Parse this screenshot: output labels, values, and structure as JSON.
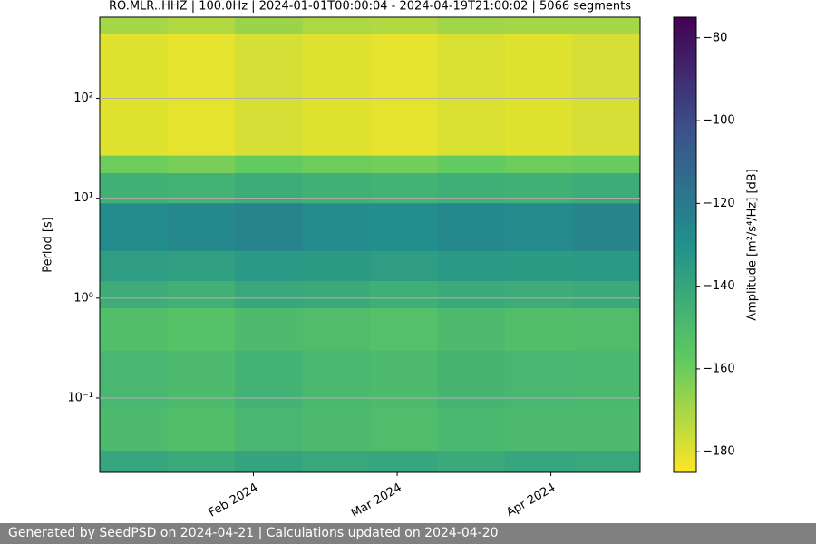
{
  "chart_data": {
    "type": "heatmap",
    "title": "RO.MLR..HHZ | 100.0Hz | 2024-01-01T00:00:04 - 2024-04-19T21:00:02 | 5066 segments",
    "ylabel": "Period [s]",
    "xlim": [
      "2024-01-01",
      "2024-04-19"
    ],
    "xticks": [
      {
        "value": "2024-02-01",
        "label": "Feb 2024"
      },
      {
        "value": "2024-03-01",
        "label": "Mar 2024"
      },
      {
        "value": "2024-04-01",
        "label": "Apr 2024"
      }
    ],
    "ylim": [
      0.018,
      650
    ],
    "log_y": true,
    "yticks": [
      {
        "value": 0.1,
        "label": "10⁻¹"
      },
      {
        "value": 1,
        "label": "10⁰"
      },
      {
        "value": 10,
        "label": "10¹"
      },
      {
        "value": 100,
        "label": "10²"
      }
    ],
    "grid": true,
    "y_bins": [
      0.018,
      0.03,
      0.08,
      0.3,
      0.8,
      1.5,
      3,
      9,
      18,
      27,
      450,
      650
    ],
    "values": [
      [
        -140,
        -142,
        -139,
        -141,
        -140,
        -142,
        -140,
        -141
      ],
      [
        -150,
        -152,
        -148,
        -150,
        -151,
        -149,
        -150,
        -150
      ],
      [
        -148,
        -150,
        -146,
        -149,
        -150,
        -147,
        -148,
        -149
      ],
      [
        -152,
        -154,
        -150,
        -151,
        -153,
        -150,
        -152,
        -151
      ],
      [
        -143,
        -145,
        -141,
        -142,
        -144,
        -142,
        -143,
        -142
      ],
      [
        -136,
        -137,
        -134,
        -135,
        -136,
        -134,
        -135,
        -134
      ],
      [
        -128,
        -126,
        -124,
        -128,
        -129,
        -126,
        -127,
        -125
      ],
      [
        -145,
        -146,
        -143,
        -145,
        -146,
        -144,
        -145,
        -143
      ],
      [
        -160,
        -162,
        -158,
        -160,
        -161,
        -158,
        -160,
        -159
      ],
      [
        -180,
        -181,
        -178,
        -180,
        -181,
        -179,
        -180,
        -178
      ],
      [
        -170,
        -172,
        -168,
        -171,
        -172,
        -169,
        -170,
        -170
      ]
    ],
    "colormap": "viridis_r",
    "clim": [
      -185,
      -75
    ],
    "colorbar_label": "Amplitude [m²/s⁴/Hz] [dB]",
    "cticks": [
      {
        "value": -80,
        "label": "−80"
      },
      {
        "value": -100,
        "label": "−100"
      },
      {
        "value": -120,
        "label": "−120"
      },
      {
        "value": -140,
        "label": "−140"
      },
      {
        "value": -160,
        "label": "−160"
      },
      {
        "value": -180,
        "label": "−180"
      }
    ]
  },
  "footer": "Generated by SeedPSD on 2024-04-21 | Calculations updated on 2024-04-20"
}
